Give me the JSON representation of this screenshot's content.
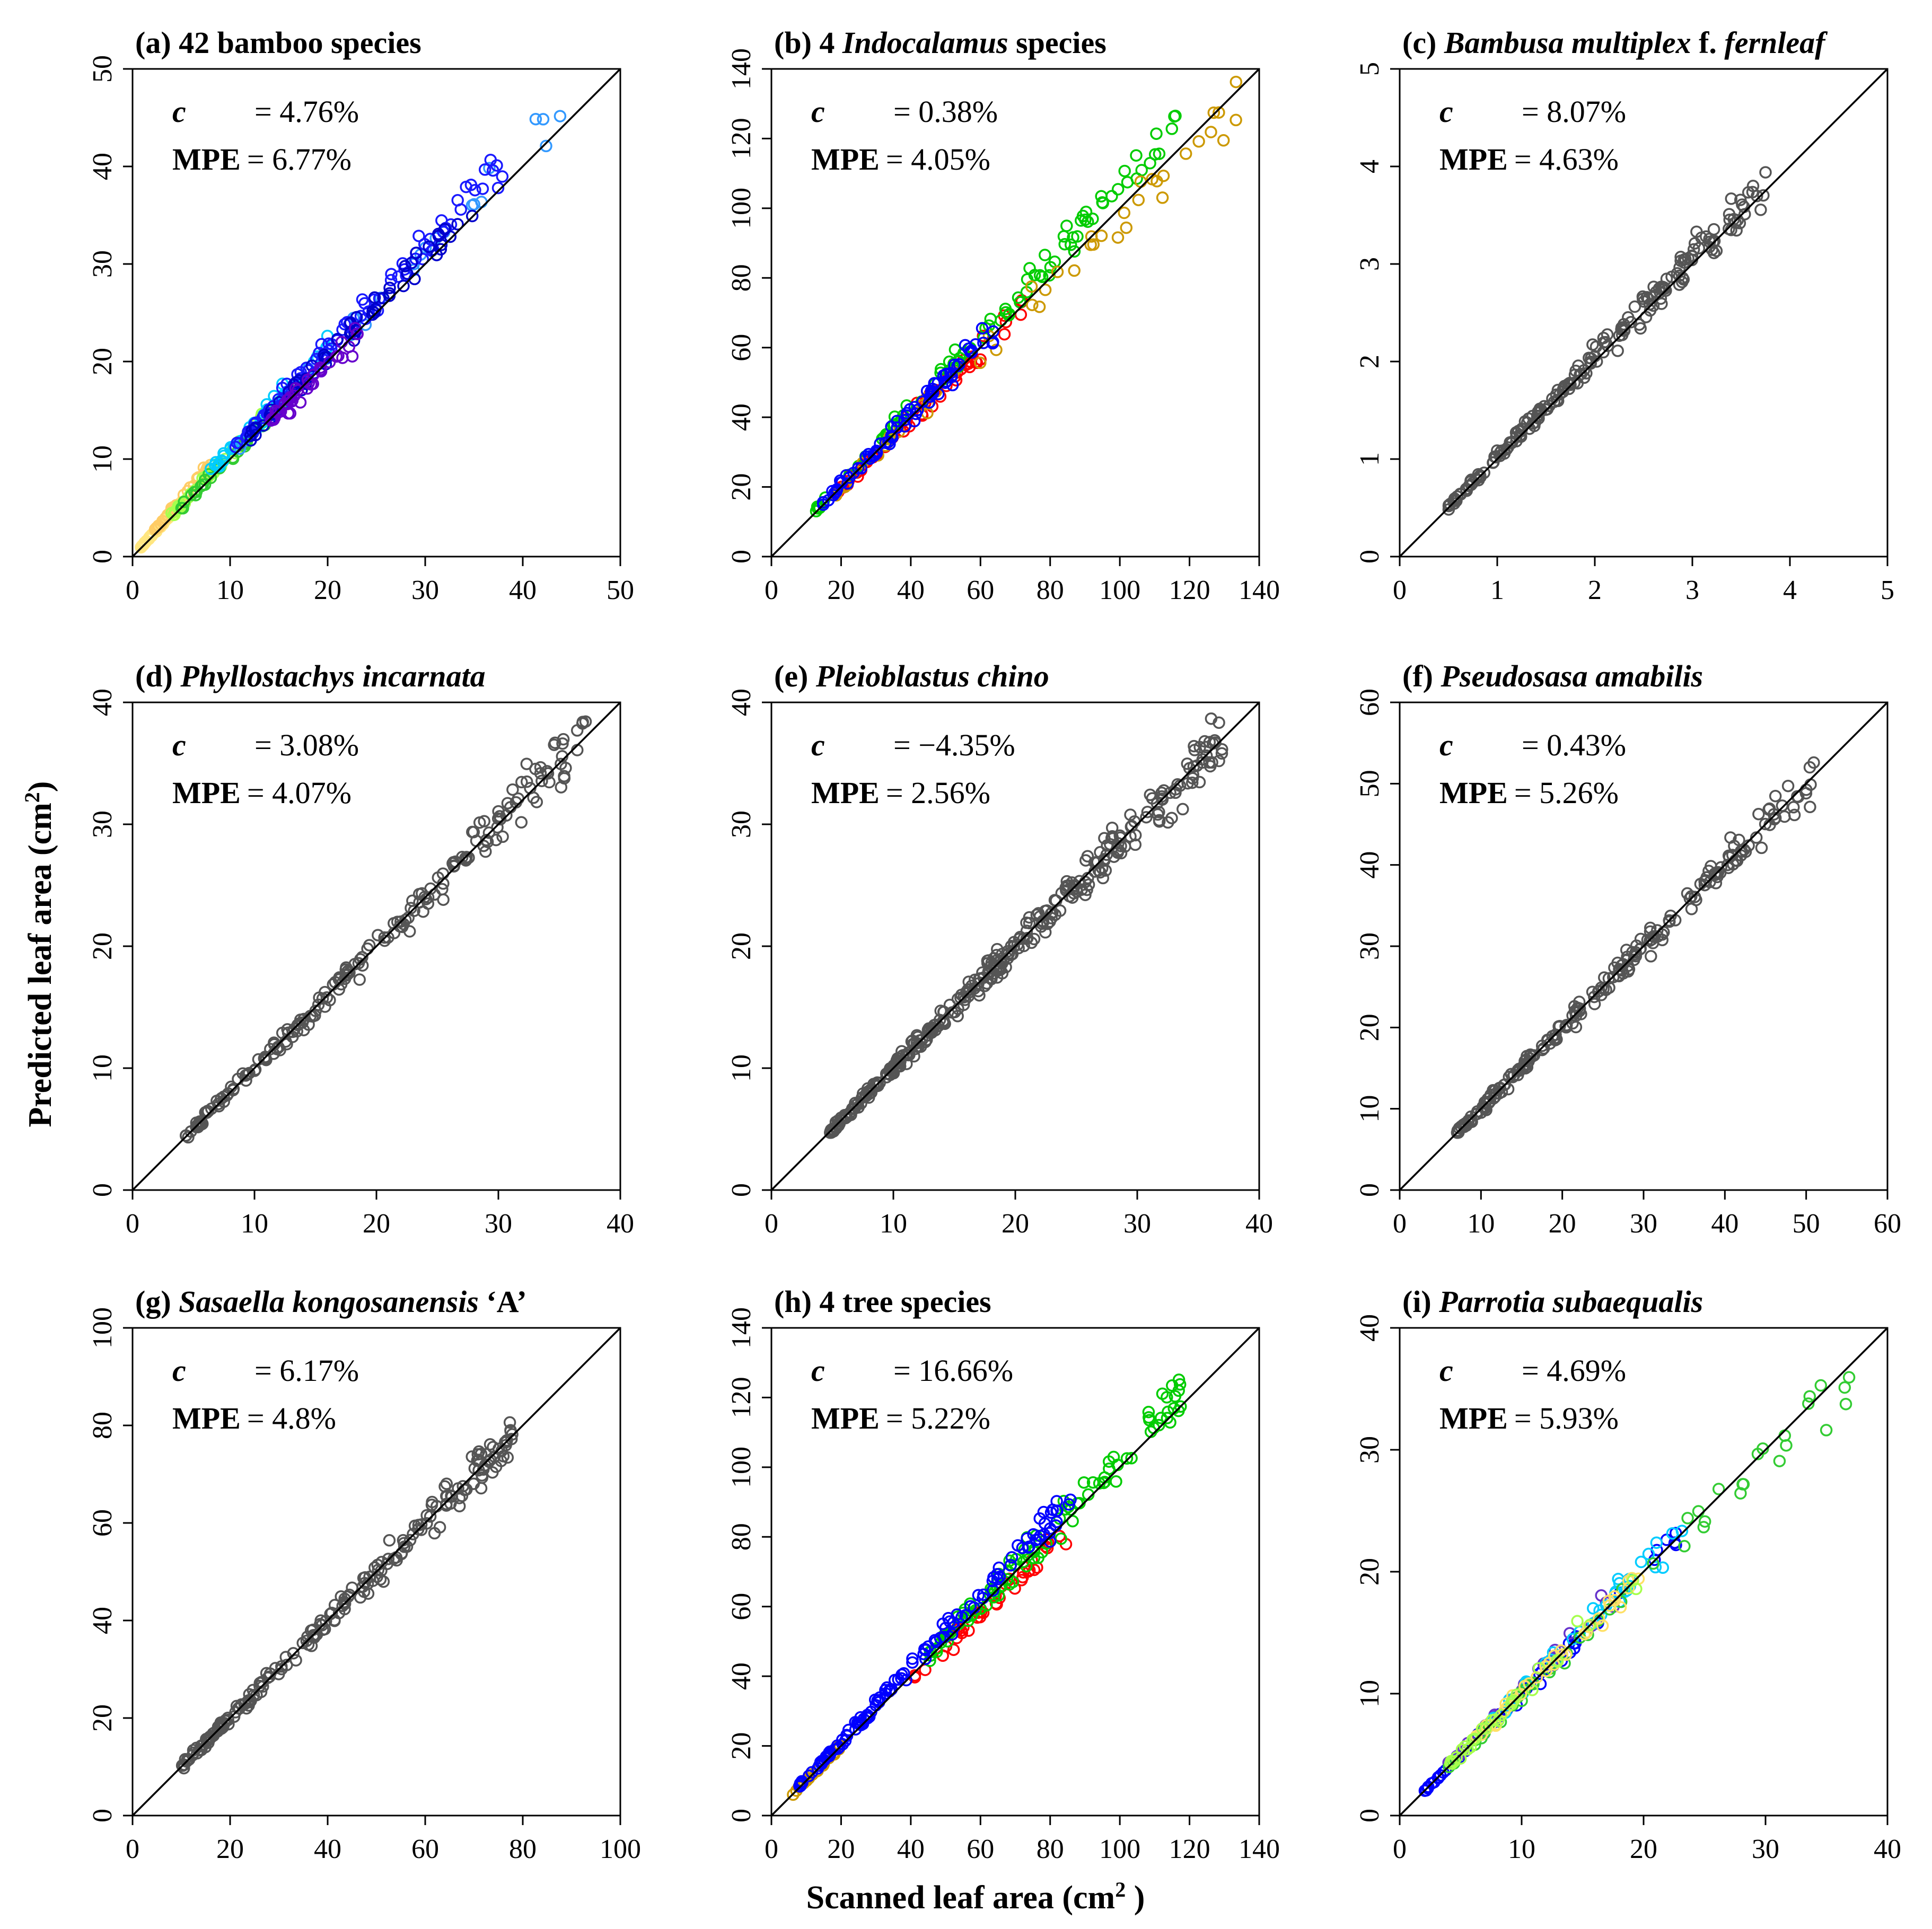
{
  "figure": {
    "xlabel": "Scanned leaf area (cm",
    "xlabel_sup": "2",
    "xlabel_end": " )",
    "ylabel": "Predicted leaf area (cm",
    "ylabel_sup": "2",
    "ylabel_end": ")",
    "reference_line": "y = x"
  },
  "chart_data": [
    {
      "type": "scatter",
      "label": "(a)",
      "title_parts": [
        {
          "text": "42 bamboo species",
          "italic": false
        }
      ],
      "c_label": "c",
      "c_value": "= 4.76%",
      "mpe_label": "MPE",
      "mpe_value": "= 6.77%",
      "xlim": [
        0,
        50
      ],
      "ylim": [
        0,
        50
      ],
      "xticks": [
        0,
        10,
        20,
        30,
        40,
        50
      ],
      "yticks": [
        0,
        10,
        20,
        30,
        40,
        50
      ],
      "cluster_colors": [
        "#ffe680",
        "#ffcc66",
        "#a6ff4d",
        "#33cc33",
        "#00ccff",
        "#3399ff",
        "#1a1aff",
        "#0000cc",
        "#6600cc"
      ],
      "clusters": [
        {
          "color": "#ffe680",
          "xrange": [
            0.8,
            5
          ],
          "dev": 0.1,
          "n": 40
        },
        {
          "color": "#ffcc66",
          "xrange": [
            2,
            8
          ],
          "dev": 0.18,
          "n": 30
        },
        {
          "color": "#a6ff4d",
          "xrange": [
            4,
            14
          ],
          "dev": 0.06,
          "n": 40
        },
        {
          "color": "#33cc33",
          "xrange": [
            5,
            18
          ],
          "dev": 0.02,
          "n": 40
        },
        {
          "color": "#00ccff",
          "xrange": [
            8,
            20
          ],
          "dev": 0.08,
          "n": 40
        },
        {
          "color": "#3399ff",
          "xrange": [
            10,
            45
          ],
          "dev": 0.04,
          "n": 30
        },
        {
          "color": "#1a1aff",
          "xrange": [
            10,
            38
          ],
          "dev": 0.07,
          "n": 90
        },
        {
          "color": "#0000cc",
          "xrange": [
            12,
            35
          ],
          "dev": 0.03,
          "n": 60
        },
        {
          "color": "#6600cc",
          "xrange": [
            14,
            24
          ],
          "dev": -0.02,
          "n": 40
        }
      ]
    },
    {
      "type": "scatter",
      "label": "(b)",
      "title_parts": [
        {
          "text": "4 ",
          "italic": false
        },
        {
          "text": "Indocalamus",
          "italic": true
        },
        {
          "text": " species",
          "italic": false
        }
      ],
      "c_label": "c",
      "c_value": "= 0.38%",
      "mpe_label": "MPE",
      "mpe_value": "= 4.05%",
      "xlim": [
        0,
        140
      ],
      "ylim": [
        0,
        140
      ],
      "xticks": [
        0,
        20,
        40,
        60,
        80,
        100,
        120,
        140
      ],
      "yticks": [
        0,
        20,
        40,
        60,
        80,
        100,
        120,
        140
      ],
      "cluster_colors": [
        "#ff0000",
        "#00cc00",
        "#cc9900",
        "#0000ff"
      ],
      "clusters": [
        {
          "color": "#ff0000",
          "xrange": [
            18,
            72
          ],
          "dev": -0.02,
          "n": 60
        },
        {
          "color": "#00cc00",
          "xrange": [
            12,
            118
          ],
          "dev": 0.06,
          "n": 90
        },
        {
          "color": "#cc9900",
          "xrange": [
            18,
            135
          ],
          "dev": -0.02,
          "n": 50
        },
        {
          "color": "#0000ff",
          "xrange": [
            14,
            65
          ],
          "dev": 0.02,
          "n": 80
        }
      ]
    },
    {
      "type": "scatter",
      "label": "(c)",
      "title_parts": [
        {
          "text": "Bambusa multiplex",
          "italic": true
        },
        {
          "text": " f. ",
          "italic": false
        },
        {
          "text": "fernleaf",
          "italic": true
        }
      ],
      "c_label": "c",
      "c_value": "= 8.07%",
      "mpe_label": "MPE",
      "mpe_value": "= 4.63%",
      "xlim": [
        0,
        5
      ],
      "ylim": [
        0,
        5
      ],
      "xticks": [
        0,
        1,
        2,
        3,
        4,
        5
      ],
      "yticks": [
        0,
        1,
        2,
        3,
        4,
        5
      ],
      "cluster_colors": [
        "#555555"
      ],
      "clusters": [
        {
          "color": "#555555",
          "xrange": [
            0.5,
            3.8
          ],
          "dev": 0.02,
          "n": 200
        }
      ]
    },
    {
      "type": "scatter",
      "label": "(d)",
      "title_parts": [
        {
          "text": "Phyllostachys incarnata",
          "italic": true
        }
      ],
      "c_label": "c",
      "c_value": "= 3.08%",
      "mpe_label": "MPE",
      "mpe_value": "= 4.07%",
      "xlim": [
        0,
        40
      ],
      "ylim": [
        0,
        40
      ],
      "xticks": [
        0,
        10,
        20,
        30,
        40
      ],
      "yticks": [
        0,
        10,
        20,
        30,
        40
      ],
      "cluster_colors": [
        "#555555"
      ],
      "clusters": [
        {
          "color": "#555555",
          "xrange": [
            4.3,
            37.5
          ],
          "dev": 0.0,
          "n": 200
        }
      ]
    },
    {
      "type": "scatter",
      "label": "(e)",
      "title_parts": [
        {
          "text": "Pleioblastus chino",
          "italic": true
        }
      ],
      "c_label": "c",
      "c_value": "= −4.35%",
      "mpe_label": "MPE",
      "mpe_value": "= 2.56%",
      "xlim": [
        0,
        40
      ],
      "ylim": [
        0,
        40
      ],
      "xticks": [
        0,
        10,
        20,
        30,
        40
      ],
      "yticks": [
        0,
        10,
        20,
        30,
        40
      ],
      "cluster_colors": [
        "#555555"
      ],
      "clusters": [
        {
          "color": "#555555",
          "xrange": [
            4.8,
            37
          ],
          "dev": 0.0,
          "n": 340
        }
      ]
    },
    {
      "type": "scatter",
      "label": "(f)",
      "title_parts": [
        {
          "text": "Pseudosasa amabilis",
          "italic": true
        }
      ],
      "c_label": "c",
      "c_value": "= 0.43%",
      "mpe_label": "MPE",
      "mpe_value": "= 5.26%",
      "xlim": [
        0,
        60
      ],
      "ylim": [
        0,
        60
      ],
      "xticks": [
        0,
        10,
        20,
        30,
        40,
        50,
        60
      ],
      "yticks": [
        0,
        10,
        20,
        30,
        40,
        50,
        60
      ],
      "cluster_colors": [
        "#555555"
      ],
      "clusters": [
        {
          "color": "#555555",
          "xrange": [
            7,
            51
          ],
          "dev": 0.0,
          "n": 220
        }
      ]
    },
    {
      "type": "scatter",
      "label": "(g)",
      "title_parts": [
        {
          "text": "Sasaella kongosanensis",
          "italic": true
        },
        {
          "text": " ‘A’",
          "italic": false
        }
      ],
      "c_label": "c",
      "c_value": "= 6.17%",
      "mpe_label": "MPE",
      "mpe_value": "= 4.8%",
      "xlim": [
        0,
        100
      ],
      "ylim": [
        0,
        100
      ],
      "xticks": [
        0,
        20,
        40,
        60,
        80,
        100
      ],
      "yticks": [
        0,
        20,
        40,
        60,
        80,
        100
      ],
      "cluster_colors": [
        "#555555"
      ],
      "clusters": [
        {
          "color": "#555555",
          "xrange": [
            10,
            78
          ],
          "dev": 0.0,
          "n": 220
        }
      ]
    },
    {
      "type": "scatter",
      "label": "(h)",
      "title_parts": [
        {
          "text": "4 tree species",
          "italic": false
        }
      ],
      "c_label": "c",
      "c_value": "= 16.66%",
      "mpe_label": "MPE",
      "mpe_value": "= 5.22%",
      "xlim": [
        0,
        140
      ],
      "ylim": [
        0,
        140
      ],
      "xticks": [
        0,
        20,
        40,
        60,
        80,
        100,
        120,
        140
      ],
      "yticks": [
        0,
        20,
        40,
        60,
        80,
        100,
        120,
        140
      ],
      "cluster_colors": [
        "#ff0000",
        "#00cc00",
        "#cc9900",
        "#0000ff"
      ],
      "clusters": [
        {
          "color": "#cc9900",
          "xrange": [
            5,
            20
          ],
          "dev": 0.0,
          "n": 20
        },
        {
          "color": "#ff0000",
          "xrange": [
            40,
            85
          ],
          "dev": -0.04,
          "n": 40
        },
        {
          "color": "#00cc00",
          "xrange": [
            45,
            122
          ],
          "dev": 0.02,
          "n": 100
        },
        {
          "color": "#0000ff",
          "xrange": [
            8,
            86
          ],
          "dev": 0.06,
          "n": 130
        }
      ]
    },
    {
      "type": "scatter",
      "label": "(i)",
      "title_parts": [
        {
          "text": "Parrotia subaequalis",
          "italic": true
        }
      ],
      "c_label": "c",
      "c_value": "= 4.69%",
      "mpe_label": "MPE",
      "mpe_value": "= 5.93%",
      "xlim": [
        0,
        40
      ],
      "ylim": [
        0,
        40
      ],
      "xticks": [
        0,
        10,
        20,
        30,
        40
      ],
      "yticks": [
        0,
        10,
        20,
        30,
        40
      ],
      "cluster_colors": [
        "#0000ff",
        "#6633cc",
        "#00ccff",
        "#33cc33",
        "#ffe066",
        "#a6ff4d"
      ],
      "clusters": [
        {
          "color": "#0000ff",
          "xrange": [
            2,
            23
          ],
          "dev": 0.0,
          "n": 50
        },
        {
          "color": "#6633cc",
          "xrange": [
            4,
            18
          ],
          "dev": 0.04,
          "n": 30
        },
        {
          "color": "#00ccff",
          "xrange": [
            7,
            24
          ],
          "dev": 0.02,
          "n": 40
        },
        {
          "color": "#33cc33",
          "xrange": [
            4,
            37
          ],
          "dev": -0.02,
          "n": 50
        },
        {
          "color": "#ffe066",
          "xrange": [
            6,
            20
          ],
          "dev": 0.0,
          "n": 40
        },
        {
          "color": "#a6ff4d",
          "xrange": [
            4,
            20
          ],
          "dev": 0.02,
          "n": 30
        }
      ]
    }
  ]
}
